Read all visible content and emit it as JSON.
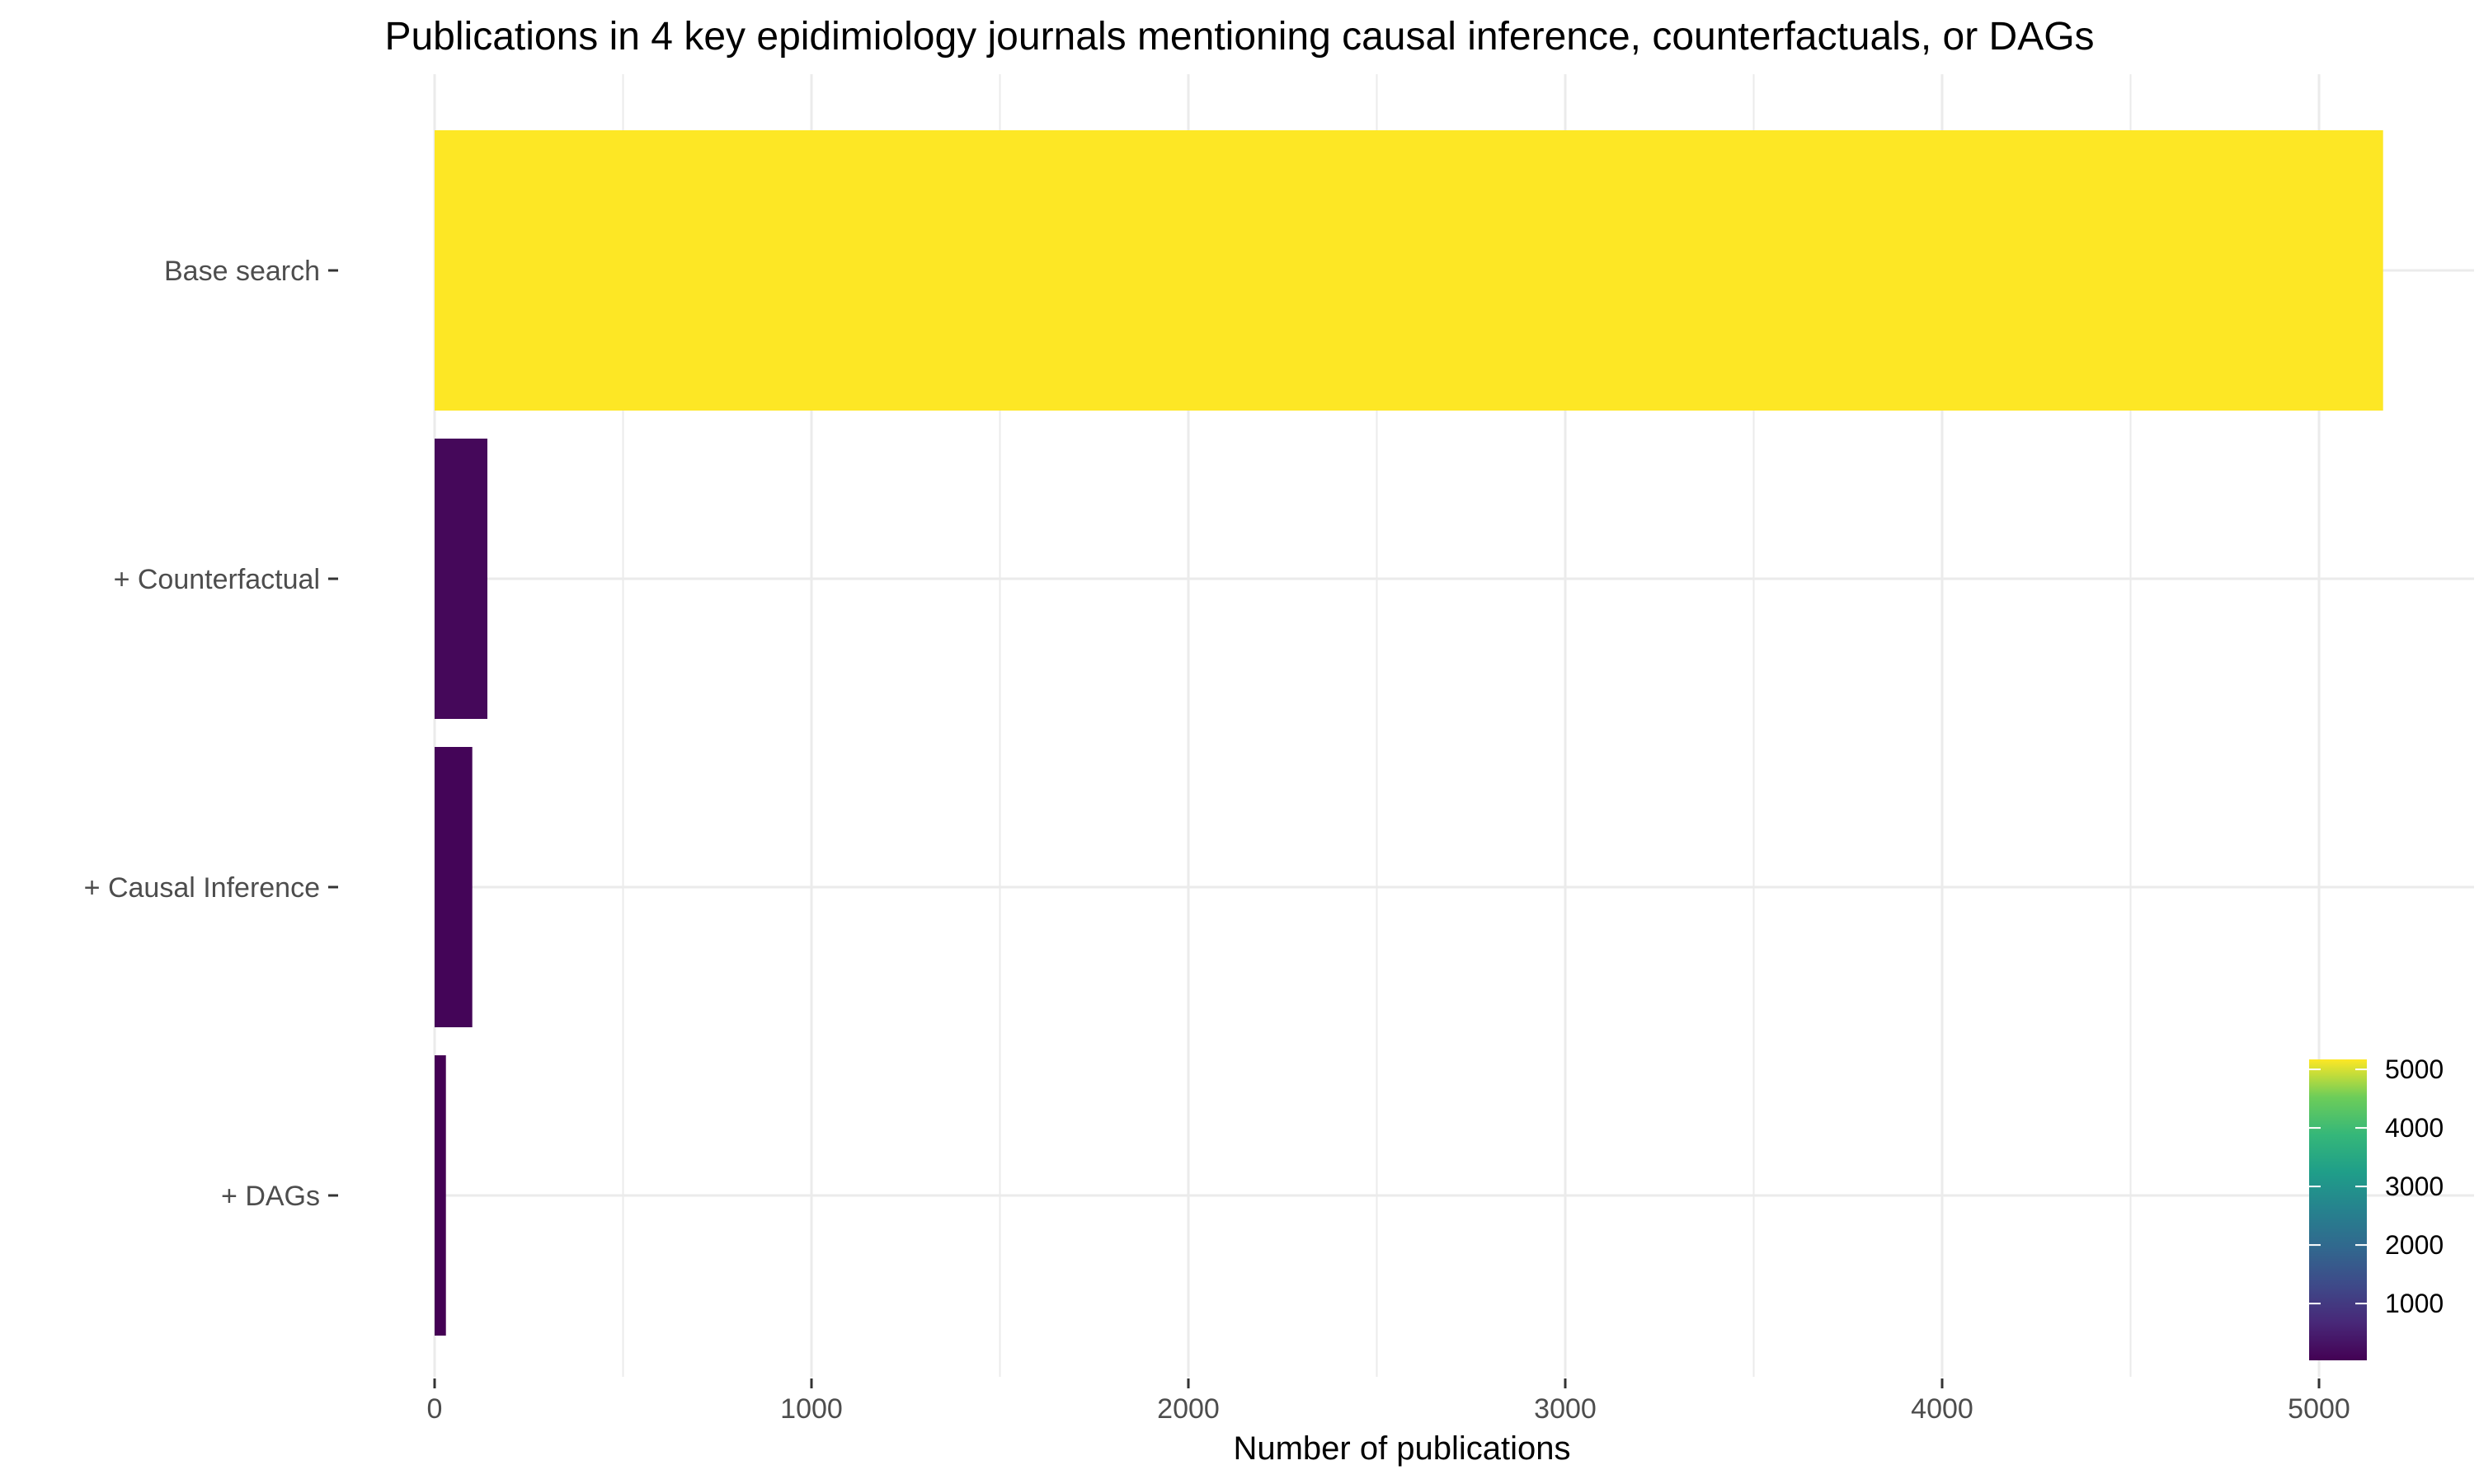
{
  "chart_data": {
    "type": "bar",
    "orientation": "horizontal",
    "title": "Publications in 4 key epidimiology journals mentioning causal inference, counterfactuals, or DAGs",
    "xlabel": "Number of publications",
    "ylabel": "",
    "categories": [
      "Base search",
      "+ Counterfactual",
      "+ Causal Inference",
      "+ DAGs"
    ],
    "values": [
      5170,
      140,
      100,
      30
    ],
    "xlim": [
      0,
      5200
    ],
    "x_ticks": [
      "0",
      "1000",
      "2000",
      "3000",
      "4000",
      "5000"
    ],
    "grid": true,
    "fill_scale": {
      "type": "continuous",
      "palette": "viridis",
      "low_color": "#440154",
      "high_color": "#FDE725",
      "range": [
        30,
        5170
      ],
      "ticks": [
        "1000",
        "2000",
        "3000",
        "4000",
        "5000"
      ],
      "position": "bottom-right"
    }
  }
}
